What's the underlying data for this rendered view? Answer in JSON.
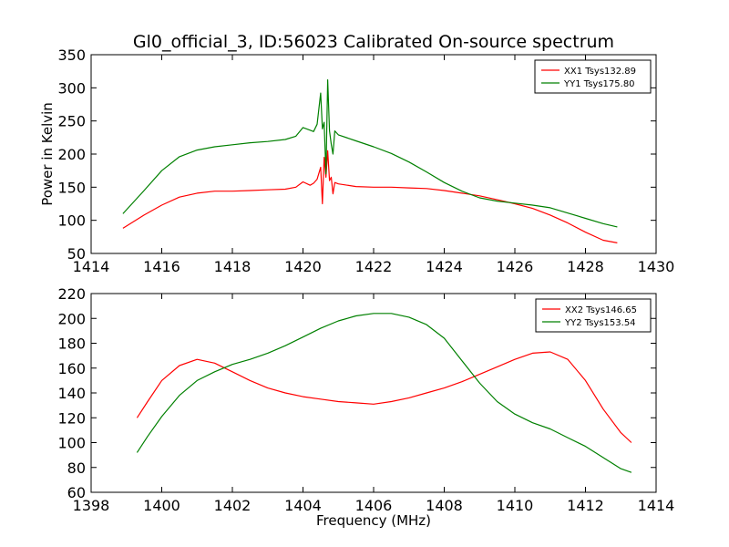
{
  "figure": {
    "title": "Gl0_official_3, ID:56023 Calibrated On-source spectrum"
  },
  "chart_data": [
    {
      "type": "line",
      "xlabel": "",
      "ylabel": "Power in Kelvin",
      "xlim": [
        1414,
        1430
      ],
      "ylim": [
        50,
        350
      ],
      "xticks": [
        1414,
        1416,
        1418,
        1420,
        1422,
        1424,
        1426,
        1428,
        1430
      ],
      "yticks": [
        50,
        100,
        150,
        200,
        250,
        300,
        350
      ],
      "legend_position": "top-right",
      "grid": false,
      "series": [
        {
          "name": "XX1 Tsys132.89",
          "color": "#ff0000",
          "x": [
            1414.9,
            1415.5,
            1416.0,
            1416.5,
            1417.0,
            1417.5,
            1418.0,
            1418.5,
            1419.0,
            1419.5,
            1419.8,
            1420.0,
            1420.2,
            1420.3,
            1420.4,
            1420.5,
            1420.55,
            1420.6,
            1420.65,
            1420.7,
            1420.75,
            1420.8,
            1420.85,
            1420.9,
            1421.0,
            1421.5,
            1422.0,
            1422.5,
            1423.0,
            1423.5,
            1424.0,
            1424.5,
            1425.0,
            1425.5,
            1426.0,
            1426.5,
            1427.0,
            1427.5,
            1428.0,
            1428.5,
            1428.9
          ],
          "y": [
            88,
            108,
            123,
            135,
            141,
            144,
            144,
            145,
            146,
            147,
            150,
            158,
            153,
            156,
            162,
            180,
            125,
            195,
            165,
            205,
            160,
            165,
            140,
            157,
            155,
            151,
            150,
            150,
            149,
            148,
            145,
            141,
            137,
            131,
            125,
            118,
            108,
            96,
            82,
            70,
            66
          ]
        },
        {
          "name": "YY1 Tsys175.80",
          "color": "#008000",
          "x": [
            1414.9,
            1415.5,
            1416.0,
            1416.5,
            1417.0,
            1417.5,
            1418.0,
            1418.5,
            1419.0,
            1419.5,
            1419.8,
            1420.0,
            1420.2,
            1420.3,
            1420.4,
            1420.5,
            1420.55,
            1420.6,
            1420.65,
            1420.7,
            1420.75,
            1420.8,
            1420.85,
            1420.9,
            1421.0,
            1421.5,
            1422.0,
            1422.5,
            1423.0,
            1423.5,
            1424.0,
            1424.5,
            1425.0,
            1425.5,
            1426.0,
            1426.5,
            1427.0,
            1427.5,
            1428.0,
            1428.5,
            1428.9
          ],
          "y": [
            110,
            145,
            175,
            196,
            206,
            211,
            214,
            217,
            219,
            222,
            227,
            240,
            236,
            234,
            245,
            292,
            238,
            248,
            170,
            312,
            235,
            215,
            200,
            235,
            229,
            220,
            211,
            201,
            188,
            173,
            157,
            144,
            134,
            129,
            126,
            123,
            119,
            111,
            103,
            95,
            90
          ]
        }
      ]
    },
    {
      "type": "line",
      "xlabel": "Frequency (MHz)",
      "ylabel": "",
      "xlim": [
        1398,
        1414
      ],
      "ylim": [
        60,
        220
      ],
      "xticks": [
        1398,
        1400,
        1402,
        1404,
        1406,
        1408,
        1410,
        1412,
        1414
      ],
      "yticks": [
        60,
        80,
        100,
        120,
        140,
        160,
        180,
        200,
        220
      ],
      "legend_position": "top-right",
      "grid": false,
      "series": [
        {
          "name": "XX2 Tsys146.65",
          "color": "#ff0000",
          "x": [
            1399.3,
            1399.6,
            1400.0,
            1400.5,
            1401.0,
            1401.5,
            1402.0,
            1402.5,
            1403.0,
            1403.5,
            1404.0,
            1404.5,
            1405.0,
            1405.5,
            1406.0,
            1406.5,
            1407.0,
            1407.5,
            1408.0,
            1408.5,
            1409.0,
            1409.5,
            1410.0,
            1410.5,
            1411.0,
            1411.5,
            1412.0,
            1412.5,
            1413.0,
            1413.3
          ],
          "y": [
            120,
            133,
            150,
            162,
            167,
            164,
            157,
            150,
            144,
            140,
            137,
            135,
            133,
            132,
            131,
            133,
            136,
            140,
            144,
            149,
            155,
            161,
            167,
            172,
            173,
            167,
            150,
            127,
            108,
            100
          ]
        },
        {
          "name": "YY2 Tsys153.54",
          "color": "#008000",
          "x": [
            1399.3,
            1399.6,
            1400.0,
            1400.5,
            1401.0,
            1401.5,
            1402.0,
            1402.5,
            1403.0,
            1403.5,
            1404.0,
            1404.5,
            1405.0,
            1405.5,
            1406.0,
            1406.5,
            1407.0,
            1407.5,
            1408.0,
            1408.5,
            1409.0,
            1409.5,
            1410.0,
            1410.5,
            1411.0,
            1411.5,
            1412.0,
            1412.5,
            1413.0,
            1413.3
          ],
          "y": [
            92,
            105,
            121,
            138,
            150,
            157,
            163,
            167,
            172,
            178,
            185,
            192,
            198,
            202,
            204,
            204,
            201,
            195,
            184,
            166,
            148,
            133,
            123,
            116,
            111,
            104,
            97,
            88,
            79,
            76
          ]
        }
      ]
    }
  ]
}
